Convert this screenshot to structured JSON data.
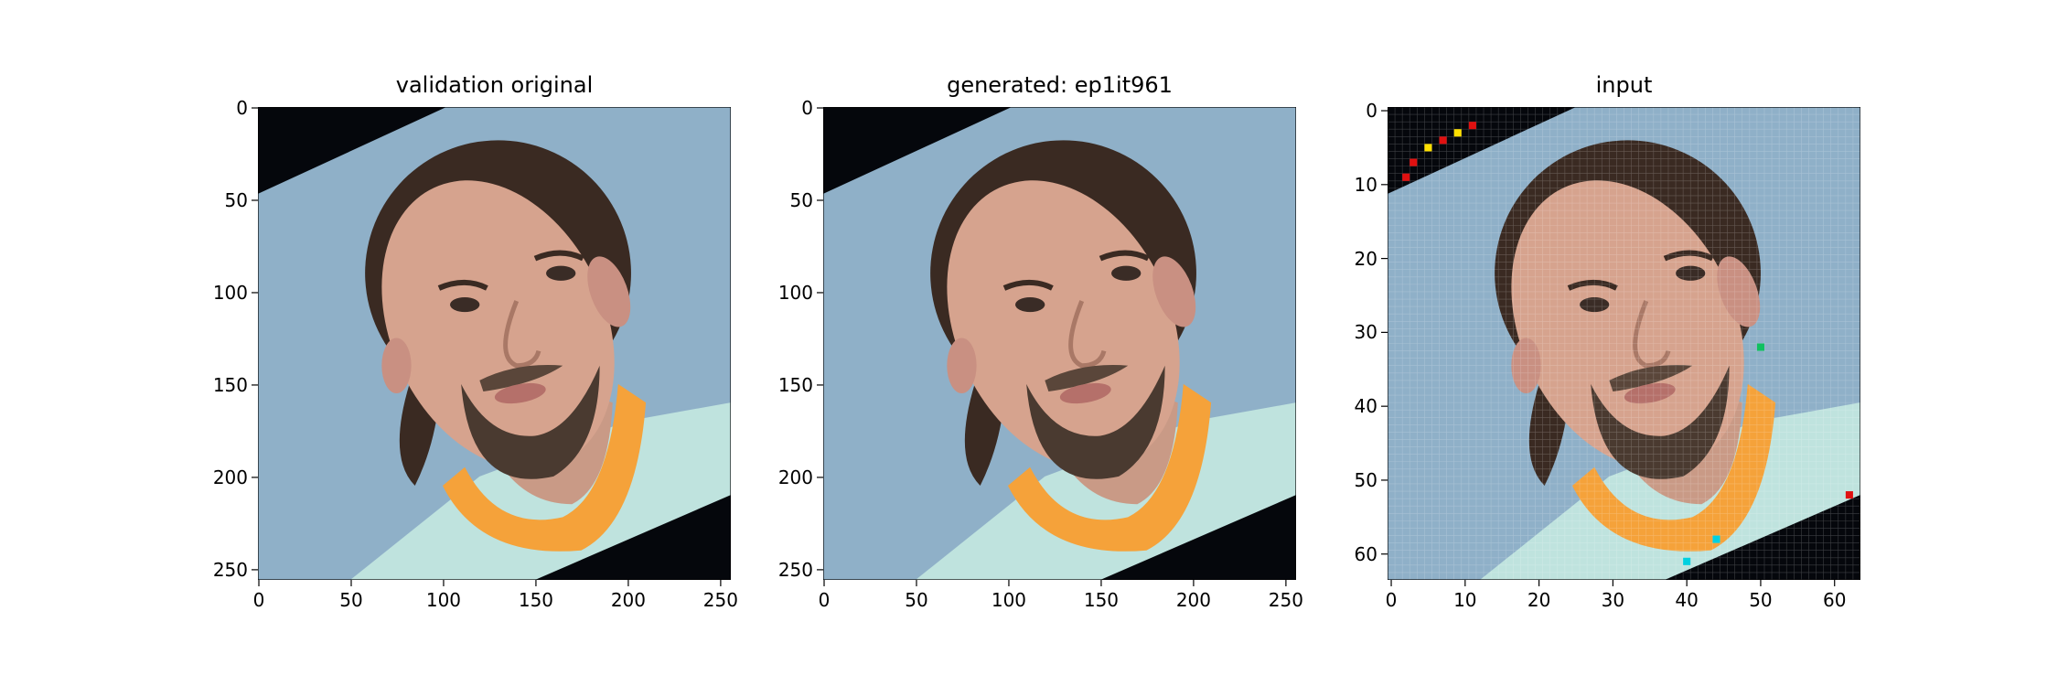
{
  "panels": [
    {
      "title": "validation original",
      "image": "face photo, blue background, orange collar",
      "x_ticks": [
        "0",
        "50",
        "100",
        "150",
        "200",
        "250"
      ],
      "y_ticks": [
        "0",
        "50",
        "100",
        "150",
        "200",
        "250"
      ],
      "extent": 256
    },
    {
      "title": "generated: ep1it961",
      "image": "generated face photo, blue background, orange collar",
      "x_ticks": [
        "0",
        "50",
        "100",
        "150",
        "200",
        "250"
      ],
      "y_ticks": [
        "0",
        "50",
        "100",
        "150",
        "200",
        "250"
      ],
      "extent": 256
    },
    {
      "title": "input",
      "image": "pixelated low-res face photo",
      "x_ticks": [
        "0",
        "10",
        "20",
        "30",
        "40",
        "50",
        "60"
      ],
      "y_ticks": [
        "0",
        "10",
        "20",
        "30",
        "40",
        "50",
        "60"
      ],
      "extent": 64
    }
  ],
  "colors": {
    "background_blue": "#8fb0c8",
    "skin": "#d6a38e",
    "hair": "#3a2a22",
    "collar_orange": "#f5a23a",
    "shirt_mint": "#bfe3de",
    "dark_corner": "#05070c"
  }
}
